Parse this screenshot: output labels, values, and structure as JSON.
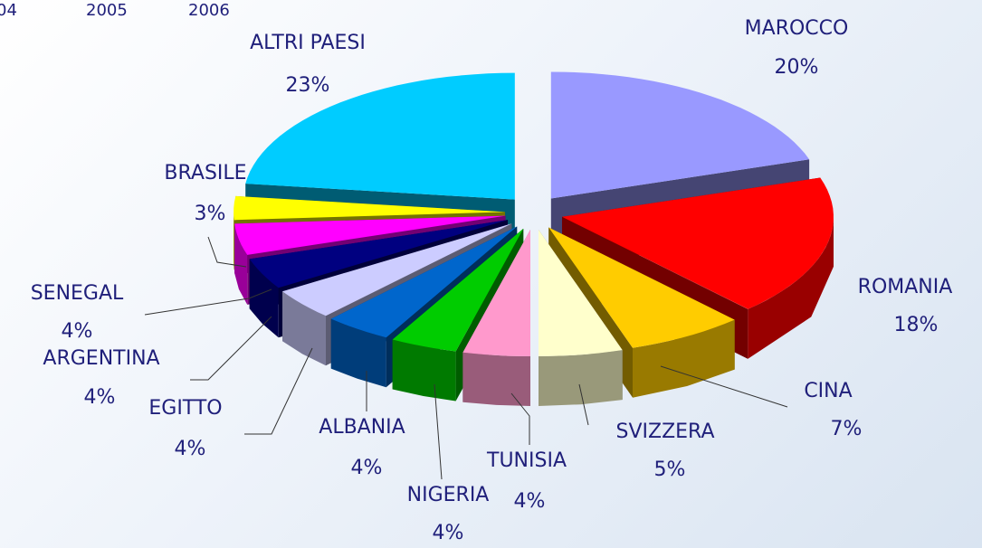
{
  "header": {
    "items": [
      "04",
      "2005",
      "2006"
    ]
  },
  "chart_data": {
    "type": "pie3d",
    "categories": [
      "MAROCCO",
      "ROMANIA",
      "CINA",
      "SVIZZERA",
      "TUNISIA",
      "NIGERIA",
      "ALBANIA",
      "EGITTO",
      "ARGENTINA",
      "SENEGAL",
      "BRASILE",
      "ALTRI PAESI"
    ],
    "values": [
      20,
      18,
      7,
      5,
      4,
      4,
      4,
      4,
      4,
      4,
      3,
      23
    ],
    "value_labels": [
      "20%",
      "18%",
      "7%",
      "5%",
      "4%",
      "4%",
      "4%",
      "4%",
      "4%",
      "4%",
      "3%",
      "23%"
    ],
    "colors": [
      "#9999ff",
      "#ff0000",
      "#ffcc00",
      "#ffffcc",
      "#ff99cc",
      "#00cc00",
      "#0066cc",
      "#ccccff",
      "#000080",
      "#ff00ff",
      "#ffff00",
      "#00ccff"
    ]
  }
}
